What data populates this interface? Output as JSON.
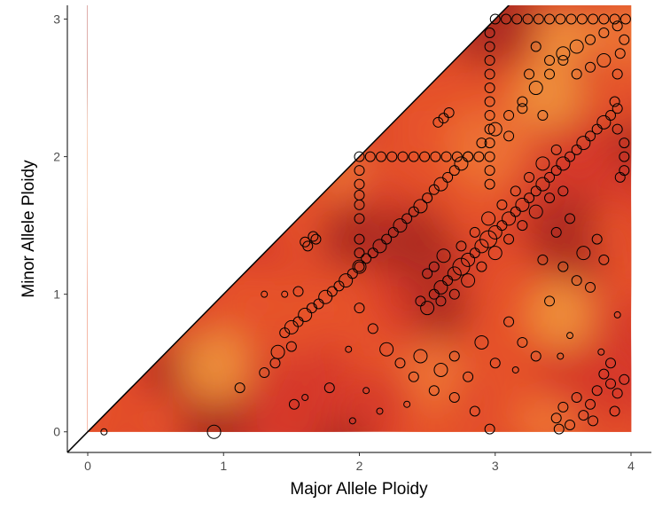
{
  "chart_data": {
    "type": "scatter",
    "xlabel": "Major Allele Ploidy",
    "ylabel": "Minor Allele Ploidy",
    "xlim": [
      -0.15,
      4.15
    ],
    "ylim": [
      -0.15,
      3.1
    ],
    "x_ticks": [
      "0",
      "1",
      "2",
      "3",
      "4"
    ],
    "y_ticks": [
      "0",
      "1",
      "2",
      "3"
    ],
    "grid": false,
    "legend": "none",
    "reference_line": {
      "slope": 1,
      "intercept": 0
    },
    "background_density": {
      "extent_x": [
        0,
        4
      ],
      "note": "heat-colored density field under the diagonal",
      "colors": [
        "#a8281f",
        "#d63a2a",
        "#e8552c",
        "#f07a35",
        "#f19a3c"
      ]
    },
    "point_style": {
      "fill": "none",
      "stroke": "#000000"
    },
    "series": [
      {
        "points": [
          [
            0.12,
            0.0,
            1
          ],
          [
            0.93,
            0.0,
            3
          ],
          [
            2.96,
            0.02,
            2
          ],
          [
            3.47,
            0.02,
            2
          ],
          [
            1.12,
            0.32,
            2
          ],
          [
            1.3,
            0.43,
            2
          ],
          [
            1.38,
            0.5,
            2
          ],
          [
            1.4,
            0.58,
            3
          ],
          [
            1.5,
            0.62,
            2
          ],
          [
            1.6,
            0.25,
            1
          ],
          [
            1.78,
            0.32,
            2
          ],
          [
            1.52,
            0.2,
            2
          ],
          [
            1.3,
            1.0,
            1
          ],
          [
            1.45,
            1.0,
            1
          ],
          [
            1.55,
            1.02,
            2
          ],
          [
            1.45,
            0.72,
            2
          ],
          [
            1.5,
            0.76,
            3
          ],
          [
            1.55,
            0.8,
            2
          ],
          [
            1.6,
            0.85,
            3
          ],
          [
            1.65,
            0.9,
            2
          ],
          [
            1.7,
            0.93,
            2
          ],
          [
            1.75,
            0.98,
            3
          ],
          [
            1.8,
            1.02,
            2
          ],
          [
            1.85,
            1.06,
            2
          ],
          [
            1.9,
            1.1,
            3
          ],
          [
            1.95,
            1.15,
            2
          ],
          [
            2.0,
            1.2,
            3
          ],
          [
            2.05,
            1.26,
            2
          ],
          [
            2.1,
            1.3,
            2
          ],
          [
            2.15,
            1.35,
            3
          ],
          [
            2.2,
            1.4,
            2
          ],
          [
            2.25,
            1.45,
            2
          ],
          [
            2.3,
            1.5,
            3
          ],
          [
            2.35,
            1.55,
            2
          ],
          [
            2.4,
            1.6,
            2
          ],
          [
            2.45,
            1.64,
            3
          ],
          [
            2.5,
            1.7,
            2
          ],
          [
            2.55,
            1.76,
            2
          ],
          [
            2.6,
            1.8,
            3
          ],
          [
            2.65,
            1.85,
            2
          ],
          [
            2.7,
            1.9,
            2
          ],
          [
            2.75,
            1.95,
            3
          ],
          [
            2.8,
            2.0,
            2
          ],
          [
            2.9,
            2.1,
            2
          ],
          [
            3.0,
            2.2,
            3
          ],
          [
            3.1,
            2.3,
            2
          ],
          [
            3.2,
            2.4,
            2
          ],
          [
            3.3,
            2.5,
            3
          ],
          [
            3.4,
            2.6,
            2
          ],
          [
            3.5,
            2.7,
            2
          ],
          [
            3.6,
            2.8,
            3
          ],
          [
            3.7,
            2.85,
            2
          ],
          [
            3.8,
            2.9,
            2
          ],
          [
            3.9,
            2.95,
            2
          ],
          [
            1.62,
            1.35,
            2
          ],
          [
            1.68,
            1.4,
            2
          ],
          [
            1.92,
            0.6,
            1
          ],
          [
            2.0,
            0.9,
            2
          ],
          [
            2.1,
            0.75,
            2
          ],
          [
            2.2,
            0.6,
            3
          ],
          [
            2.3,
            0.5,
            2
          ],
          [
            2.4,
            0.4,
            2
          ],
          [
            2.45,
            0.55,
            3
          ],
          [
            2.55,
            0.3,
            2
          ],
          [
            2.6,
            0.45,
            3
          ],
          [
            2.7,
            0.55,
            2
          ],
          [
            2.8,
            0.4,
            2
          ],
          [
            2.9,
            0.65,
            3
          ],
          [
            3.0,
            0.5,
            2
          ],
          [
            3.1,
            0.8,
            2
          ],
          [
            2.7,
            0.25,
            2
          ],
          [
            2.85,
            0.15,
            2
          ],
          [
            2.35,
            0.2,
            1
          ],
          [
            2.05,
            0.3,
            1
          ],
          [
            1.95,
            0.08,
            1
          ],
          [
            2.15,
            0.15,
            1
          ],
          [
            2.55,
            1.0,
            2
          ],
          [
            2.6,
            1.05,
            3
          ],
          [
            2.65,
            1.1,
            2
          ],
          [
            2.7,
            1.15,
            3
          ],
          [
            2.75,
            1.2,
            4
          ],
          [
            2.8,
            1.25,
            3
          ],
          [
            2.85,
            1.3,
            2
          ],
          [
            2.9,
            1.35,
            3
          ],
          [
            2.95,
            1.4,
            4
          ],
          [
            3.0,
            1.45,
            3
          ],
          [
            3.05,
            1.5,
            2
          ],
          [
            3.1,
            1.55,
            3
          ],
          [
            3.15,
            1.6,
            2
          ],
          [
            3.2,
            1.65,
            3
          ],
          [
            3.25,
            1.7,
            2
          ],
          [
            3.3,
            1.75,
            2
          ],
          [
            3.35,
            1.8,
            3
          ],
          [
            3.4,
            1.85,
            2
          ],
          [
            3.45,
            1.9,
            2
          ],
          [
            3.5,
            1.95,
            3
          ],
          [
            3.55,
            2.0,
            2
          ],
          [
            3.6,
            2.05,
            2
          ],
          [
            3.65,
            2.1,
            3
          ],
          [
            3.7,
            2.15,
            2
          ],
          [
            3.75,
            2.2,
            2
          ],
          [
            3.8,
            2.25,
            3
          ],
          [
            3.85,
            2.3,
            2
          ],
          [
            3.9,
            2.35,
            2
          ],
          [
            2.45,
            0.95,
            2
          ],
          [
            2.5,
            0.9,
            3
          ],
          [
            2.6,
            0.95,
            2
          ],
          [
            2.7,
            1.0,
            2
          ],
          [
            2.8,
            1.1,
            3
          ],
          [
            2.9,
            1.2,
            2
          ],
          [
            3.0,
            1.3,
            3
          ],
          [
            3.1,
            1.4,
            2
          ],
          [
            3.2,
            1.5,
            2
          ],
          [
            3.3,
            1.6,
            3
          ],
          [
            3.4,
            1.7,
            2
          ],
          [
            3.5,
            1.75,
            2
          ],
          [
            2.5,
            1.15,
            2
          ],
          [
            2.55,
            1.2,
            2
          ],
          [
            2.62,
            1.28,
            3
          ],
          [
            2.75,
            1.35,
            2
          ],
          [
            2.85,
            1.45,
            2
          ],
          [
            2.95,
            1.55,
            3
          ],
          [
            3.05,
            1.65,
            2
          ],
          [
            3.15,
            1.75,
            2
          ],
          [
            3.25,
            1.85,
            2
          ],
          [
            3.35,
            1.95,
            3
          ],
          [
            3.45,
            2.05,
            2
          ],
          [
            3.95,
            2.0,
            2
          ],
          [
            3.95,
            2.1,
            2
          ],
          [
            3.95,
            1.9,
            2
          ],
          [
            3.92,
            1.85,
            2
          ],
          [
            3.9,
            2.2,
            2
          ],
          [
            3.88,
            2.4,
            2
          ],
          [
            3.9,
            2.6,
            2
          ],
          [
            3.92,
            2.75,
            2
          ],
          [
            3.95,
            2.85,
            2
          ],
          [
            3.3,
            2.8,
            2
          ],
          [
            3.4,
            2.7,
            2
          ],
          [
            3.5,
            2.75,
            3
          ],
          [
            3.6,
            2.6,
            2
          ],
          [
            3.7,
            2.65,
            2
          ],
          [
            3.8,
            2.7,
            3
          ],
          [
            3.25,
            2.6,
            2
          ],
          [
            3.2,
            2.35,
            2
          ],
          [
            3.1,
            2.15,
            2
          ],
          [
            3.35,
            2.3,
            2
          ],
          [
            2.58,
            2.25,
            2
          ],
          [
            2.62,
            2.28,
            2
          ],
          [
            2.66,
            2.32,
            2
          ],
          [
            1.6,
            1.38,
            2
          ],
          [
            1.66,
            1.42,
            2
          ],
          [
            2.0,
            2.0,
            2
          ],
          [
            2.08,
            2.0,
            2
          ],
          [
            2.16,
            2.0,
            2
          ],
          [
            2.24,
            2.0,
            2
          ],
          [
            2.32,
            2.0,
            2
          ],
          [
            2.4,
            2.0,
            2
          ],
          [
            2.48,
            2.0,
            2
          ],
          [
            2.56,
            2.0,
            2
          ],
          [
            2.64,
            2.0,
            2
          ],
          [
            2.72,
            2.0,
            2
          ],
          [
            2.8,
            2.0,
            2
          ],
          [
            2.88,
            2.0,
            2
          ],
          [
            2.96,
            2.0,
            2
          ],
          [
            2.0,
            1.9,
            2
          ],
          [
            2.0,
            1.8,
            2
          ],
          [
            2.0,
            1.72,
            2
          ],
          [
            2.0,
            1.65,
            2
          ],
          [
            2.0,
            1.55,
            2
          ],
          [
            2.0,
            1.4,
            2
          ],
          [
            2.0,
            1.3,
            2
          ],
          [
            2.0,
            1.2,
            2
          ],
          [
            2.96,
            2.1,
            2
          ],
          [
            2.96,
            2.2,
            2
          ],
          [
            2.96,
            2.3,
            2
          ],
          [
            2.96,
            2.4,
            2
          ],
          [
            2.96,
            2.5,
            2
          ],
          [
            2.96,
            2.6,
            2
          ],
          [
            2.96,
            2.7,
            2
          ],
          [
            2.96,
            2.8,
            2
          ],
          [
            2.96,
            2.9,
            2
          ],
          [
            2.96,
            1.9,
            2
          ],
          [
            2.96,
            1.8,
            2
          ],
          [
            3.0,
            3.0,
            2
          ],
          [
            3.08,
            3.0,
            2
          ],
          [
            3.16,
            3.0,
            2
          ],
          [
            3.24,
            3.0,
            2
          ],
          [
            3.32,
            3.0,
            2
          ],
          [
            3.4,
            3.0,
            2
          ],
          [
            3.48,
            3.0,
            2
          ],
          [
            3.56,
            3.0,
            2
          ],
          [
            3.64,
            3.0,
            2
          ],
          [
            3.72,
            3.0,
            2
          ],
          [
            3.8,
            3.0,
            2
          ],
          [
            3.88,
            3.0,
            2
          ],
          [
            3.96,
            3.0,
            2
          ],
          [
            3.95,
            0.38,
            2
          ],
          [
            3.9,
            0.28,
            2
          ],
          [
            3.85,
            0.35,
            2
          ],
          [
            3.8,
            0.42,
            2
          ],
          [
            3.75,
            0.3,
            2
          ],
          [
            3.7,
            0.2,
            2
          ],
          [
            3.65,
            0.12,
            2
          ],
          [
            3.6,
            0.25,
            2
          ],
          [
            3.55,
            0.05,
            2
          ],
          [
            3.5,
            0.18,
            2
          ],
          [
            3.45,
            0.1,
            2
          ],
          [
            3.48,
            0.55,
            1
          ],
          [
            3.85,
            0.5,
            2
          ],
          [
            3.78,
            0.58,
            1
          ],
          [
            3.88,
            0.15,
            2
          ],
          [
            3.72,
            0.08,
            2
          ],
          [
            3.5,
            1.2,
            2
          ],
          [
            3.6,
            1.1,
            2
          ],
          [
            3.7,
            1.05,
            2
          ],
          [
            3.8,
            1.25,
            2
          ],
          [
            3.4,
            0.95,
            2
          ],
          [
            3.55,
            0.7,
            1
          ],
          [
            3.3,
            0.55,
            2
          ],
          [
            3.2,
            0.65,
            2
          ],
          [
            3.15,
            0.45,
            1
          ],
          [
            3.9,
            0.85,
            1
          ],
          [
            3.35,
            1.25,
            2
          ],
          [
            3.65,
            1.3,
            3
          ],
          [
            3.75,
            1.4,
            2
          ],
          [
            3.45,
            1.45,
            2
          ],
          [
            3.55,
            1.55,
            2
          ]
        ]
      }
    ]
  }
}
